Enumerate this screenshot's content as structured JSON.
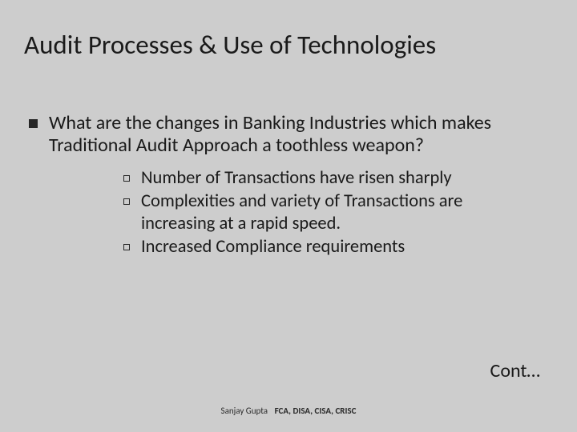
{
  "background_color": "#cdcdcd",
  "text_color": "#1a1a1a",
  "title": "Audit Processes & Use of Technologies",
  "title_fontsize": 33,
  "bullet_lvl1_text": "What are the changes in Banking Industries which makes Traditional Audit Approach a toothless weapon?",
  "bullet_lvl1_fontsize": 24,
  "bullet_lvl1_marker": "filled-square",
  "sub_bullets": [
    "Number of Transactions have risen sharply",
    " Complexities and variety of Transactions are increasing at a rapid speed.",
    "Increased Compliance requirements"
  ],
  "sub_bullet_fontsize": 22.5,
  "sub_bullet_marker": "hollow-square",
  "cont_label": "Cont…",
  "footer_name": "Sanjay Gupta",
  "footer_credentials": "FCA, DISA, CISA, CRISC",
  "footer_fontsize": 11
}
